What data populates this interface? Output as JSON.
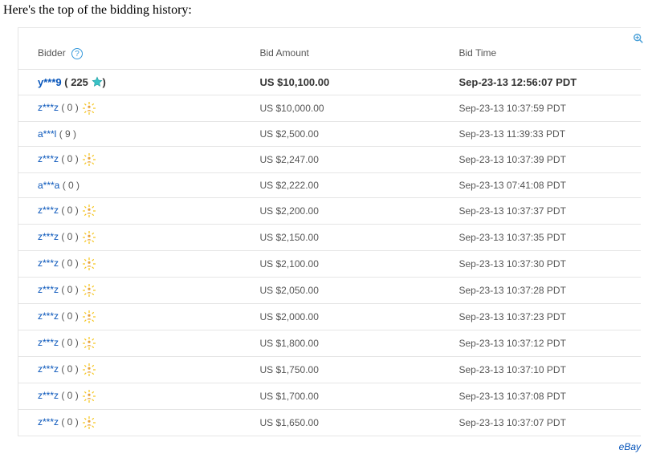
{
  "intro_text": "Here's the top of the bidding history:",
  "headers": {
    "bidder": "Bidder",
    "amount": "Bid Amount",
    "time": "Bid Time"
  },
  "credit": "eBay",
  "colors": {
    "link": "#0654ba",
    "text": "#555555",
    "border": "#e5e5e5",
    "accent": "#4aa0d8"
  },
  "rows": [
    {
      "winning": true,
      "name": "y***9",
      "feedback": "225",
      "icon": "star",
      "amount": "US $10,100.00",
      "time": "Sep-23-13 12:56:07 PDT"
    },
    {
      "winning": false,
      "name": "z***z",
      "feedback": "0",
      "icon": "new",
      "amount": "US $10,000.00",
      "time": "Sep-23-13 10:37:59 PDT"
    },
    {
      "winning": false,
      "name": "a***l",
      "feedback": "9",
      "icon": "",
      "amount": "US $2,500.00",
      "time": "Sep-23-13 11:39:33 PDT"
    },
    {
      "winning": false,
      "name": "z***z",
      "feedback": "0",
      "icon": "new",
      "amount": "US $2,247.00",
      "time": "Sep-23-13 10:37:39 PDT"
    },
    {
      "winning": false,
      "name": "a***a",
      "feedback": "0",
      "icon": "",
      "amount": "US $2,222.00",
      "time": "Sep-23-13 07:41:08 PDT"
    },
    {
      "winning": false,
      "name": "z***z",
      "feedback": "0",
      "icon": "new",
      "amount": "US $2,200.00",
      "time": "Sep-23-13 10:37:37 PDT"
    },
    {
      "winning": false,
      "name": "z***z",
      "feedback": "0",
      "icon": "new",
      "amount": "US $2,150.00",
      "time": "Sep-23-13 10:37:35 PDT"
    },
    {
      "winning": false,
      "name": "z***z",
      "feedback": "0",
      "icon": "new",
      "amount": "US $2,100.00",
      "time": "Sep-23-13 10:37:30 PDT"
    },
    {
      "winning": false,
      "name": "z***z",
      "feedback": "0",
      "icon": "new",
      "amount": "US $2,050.00",
      "time": "Sep-23-13 10:37:28 PDT"
    },
    {
      "winning": false,
      "name": "z***z",
      "feedback": "0",
      "icon": "new",
      "amount": "US $2,000.00",
      "time": "Sep-23-13 10:37:23 PDT"
    },
    {
      "winning": false,
      "name": "z***z",
      "feedback": "0",
      "icon": "new",
      "amount": "US $1,800.00",
      "time": "Sep-23-13 10:37:12 PDT"
    },
    {
      "winning": false,
      "name": "z***z",
      "feedback": "0",
      "icon": "new",
      "amount": "US $1,750.00",
      "time": "Sep-23-13 10:37:10 PDT"
    },
    {
      "winning": false,
      "name": "z***z",
      "feedback": "0",
      "icon": "new",
      "amount": "US $1,700.00",
      "time": "Sep-23-13 10:37:08 PDT"
    },
    {
      "winning": false,
      "name": "z***z",
      "feedback": "0",
      "icon": "new",
      "amount": "US $1,650.00",
      "time": "Sep-23-13 10:37:07 PDT"
    }
  ]
}
